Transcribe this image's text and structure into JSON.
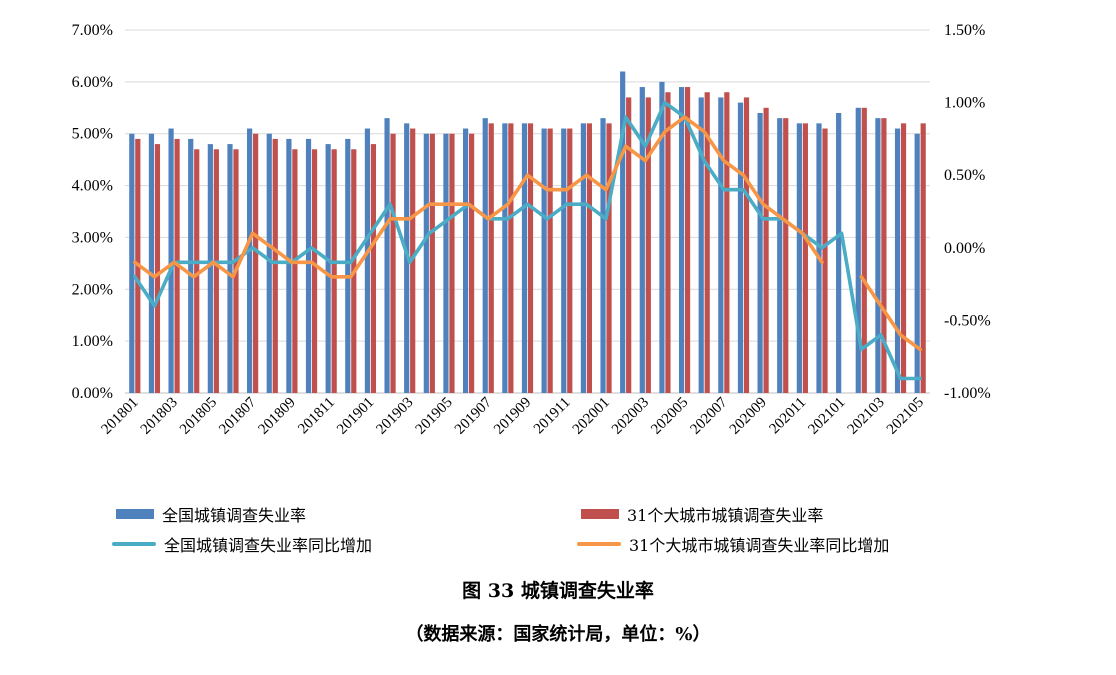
{
  "caption": {
    "title": "图 33 城镇调查失业率",
    "source": "（数据来源：国家统计局，单位：%）"
  },
  "chart_data": {
    "type": "bar",
    "categories": [
      "201801",
      "201802",
      "201803",
      "201804",
      "201805",
      "201806",
      "201807",
      "201808",
      "201809",
      "201810",
      "201811",
      "201812",
      "201901",
      "201902",
      "201903",
      "201904",
      "201905",
      "201906",
      "201907",
      "201908",
      "201909",
      "201910",
      "201911",
      "201912",
      "202001",
      "202002",
      "202003",
      "202004",
      "202005",
      "202006",
      "202007",
      "202008",
      "202009",
      "202010",
      "202011",
      "202012",
      "202101",
      "202102",
      "202103",
      "202104",
      "202105"
    ],
    "x_tick_labels": [
      "201801",
      "201803",
      "201805",
      "201807",
      "201809",
      "201811",
      "201901",
      "201903",
      "201905",
      "201907",
      "201909",
      "201911",
      "202001",
      "202003",
      "202005",
      "202007",
      "202009",
      "202011",
      "202101",
      "202103",
      "202105"
    ],
    "y_left": {
      "min": 0,
      "max": 7,
      "ticks": [
        "0.00%",
        "1.00%",
        "2.00%",
        "3.00%",
        "4.00%",
        "5.00%",
        "6.00%",
        "7.00%"
      ]
    },
    "y_right": {
      "min": -1,
      "max": 1.5,
      "ticks": [
        "-1.00%",
        "-0.50%",
        "0.00%",
        "0.50%",
        "1.00%",
        "1.50%"
      ]
    },
    "series": [
      {
        "name": "全国城镇调查失业率",
        "kind": "bar",
        "axis": "left",
        "color": "#4F81BD",
        "values": [
          5.0,
          5.0,
          5.1,
          4.9,
          4.8,
          4.8,
          5.1,
          5.0,
          4.9,
          4.9,
          4.8,
          4.9,
          5.1,
          5.3,
          5.2,
          5.0,
          5.0,
          5.1,
          5.3,
          5.2,
          5.2,
          5.1,
          5.1,
          5.2,
          5.3,
          6.2,
          5.9,
          6.0,
          5.9,
          5.7,
          5.7,
          5.6,
          5.4,
          5.3,
          5.2,
          5.2,
          5.4,
          5.5,
          5.3,
          5.1,
          5.0
        ]
      },
      {
        "name": "31个大城市城镇调查失业率",
        "kind": "bar",
        "axis": "left",
        "color": "#C0504D",
        "values": [
          4.9,
          4.8,
          4.9,
          4.7,
          4.7,
          4.7,
          5.0,
          4.9,
          4.7,
          4.7,
          4.7,
          4.7,
          4.8,
          5.0,
          5.1,
          5.0,
          5.0,
          5.0,
          5.2,
          5.2,
          5.2,
          5.1,
          5.1,
          5.2,
          5.2,
          5.7,
          5.7,
          5.8,
          5.9,
          5.8,
          5.8,
          5.7,
          5.5,
          5.3,
          5.2,
          5.1,
          null,
          5.5,
          5.3,
          5.2,
          5.2
        ]
      },
      {
        "name": "全国城镇调查失业率同比增加",
        "kind": "line",
        "axis": "right",
        "color": "#4BACC6",
        "values": [
          -0.2,
          -0.4,
          -0.1,
          -0.1,
          -0.1,
          -0.1,
          0.0,
          -0.1,
          -0.1,
          0.0,
          -0.1,
          -0.1,
          0.1,
          0.3,
          -0.1,
          0.1,
          0.2,
          0.3,
          0.2,
          0.2,
          0.3,
          0.2,
          0.3,
          0.3,
          0.2,
          0.9,
          0.7,
          1.0,
          0.9,
          0.6,
          0.4,
          0.4,
          0.2,
          0.2,
          0.1,
          0.0,
          0.1,
          -0.7,
          -0.6,
          -0.9,
          -0.9
        ]
      },
      {
        "name": "31个大城市城镇调查失业率同比增加",
        "kind": "line",
        "axis": "right",
        "color": "#F79646",
        "values": [
          -0.1,
          -0.2,
          -0.1,
          -0.2,
          -0.1,
          -0.2,
          0.1,
          0.0,
          -0.1,
          -0.1,
          -0.2,
          -0.2,
          0.0,
          0.2,
          0.2,
          0.3,
          0.3,
          0.3,
          0.2,
          0.3,
          0.5,
          0.4,
          0.4,
          0.5,
          0.4,
          0.7,
          0.6,
          0.8,
          0.9,
          0.8,
          0.6,
          0.5,
          0.3,
          0.2,
          0.1,
          -0.1,
          null,
          -0.2,
          -0.4,
          -0.6,
          -0.7
        ]
      }
    ],
    "legend_position": "bottom",
    "grid": true
  }
}
